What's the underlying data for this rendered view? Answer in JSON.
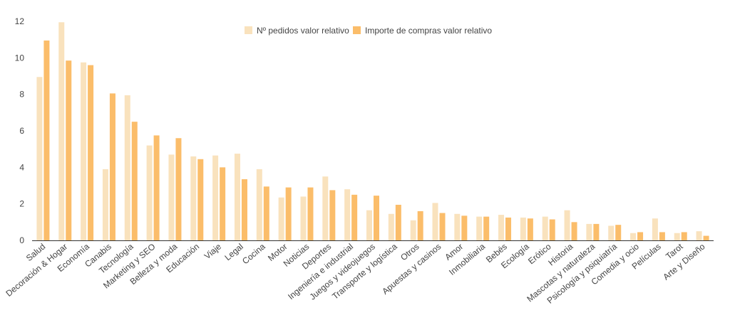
{
  "chart_data": {
    "type": "bar",
    "title": "",
    "xlabel": "",
    "ylabel": "",
    "ylim": [
      0,
      12
    ],
    "yticks": [
      0,
      2,
      4,
      6,
      8,
      10,
      12
    ],
    "grid": false,
    "legend_position": "top",
    "categories": [
      "Salud",
      "Decoración & Hogar",
      "Economía",
      "Canabis",
      "Tecnología",
      "Marketing y SEO",
      "Belleza y moda",
      "Educación",
      "Viaje",
      "Legal",
      "Cocina",
      "Motor",
      "Noticias",
      "Deportes",
      "Ingeniería e industrial",
      "Juegos y videojuegos",
      "Transporte y logística",
      "Otros",
      "Apuestas y casinos",
      "Amor",
      "Inmobiliaria",
      "Bebés",
      "Ecología",
      "Erótico",
      "Historia",
      "Mascotas y naturaleza",
      "Psicología y psiquiatría",
      "Comedia y ocio",
      "Películas",
      "Tarot",
      "Arte y Diseño"
    ],
    "series": [
      {
        "name": "Nº pedidos valor relativo",
        "color": "#f9e2bd",
        "values": [
          8.95,
          11.95,
          9.75,
          3.9,
          7.95,
          5.2,
          4.7,
          4.6,
          4.65,
          4.75,
          3.9,
          2.35,
          2.4,
          3.5,
          2.8,
          1.65,
          1.45,
          1.1,
          2.05,
          1.45,
          1.3,
          1.4,
          1.25,
          1.3,
          1.65,
          0.9,
          0.8,
          0.4,
          1.2,
          0.4,
          0.5
        ]
      },
      {
        "name": "Importe de compras valor relativo",
        "color": "#fbbd6a",
        "values": [
          10.95,
          9.85,
          9.6,
          8.05,
          6.5,
          5.75,
          5.6,
          4.45,
          4.0,
          3.35,
          2.95,
          2.9,
          2.9,
          2.75,
          2.5,
          2.45,
          1.95,
          1.6,
          1.5,
          1.35,
          1.3,
          1.25,
          1.2,
          1.15,
          1.0,
          0.9,
          0.85,
          0.45,
          0.45,
          0.45,
          0.25
        ]
      }
    ]
  }
}
